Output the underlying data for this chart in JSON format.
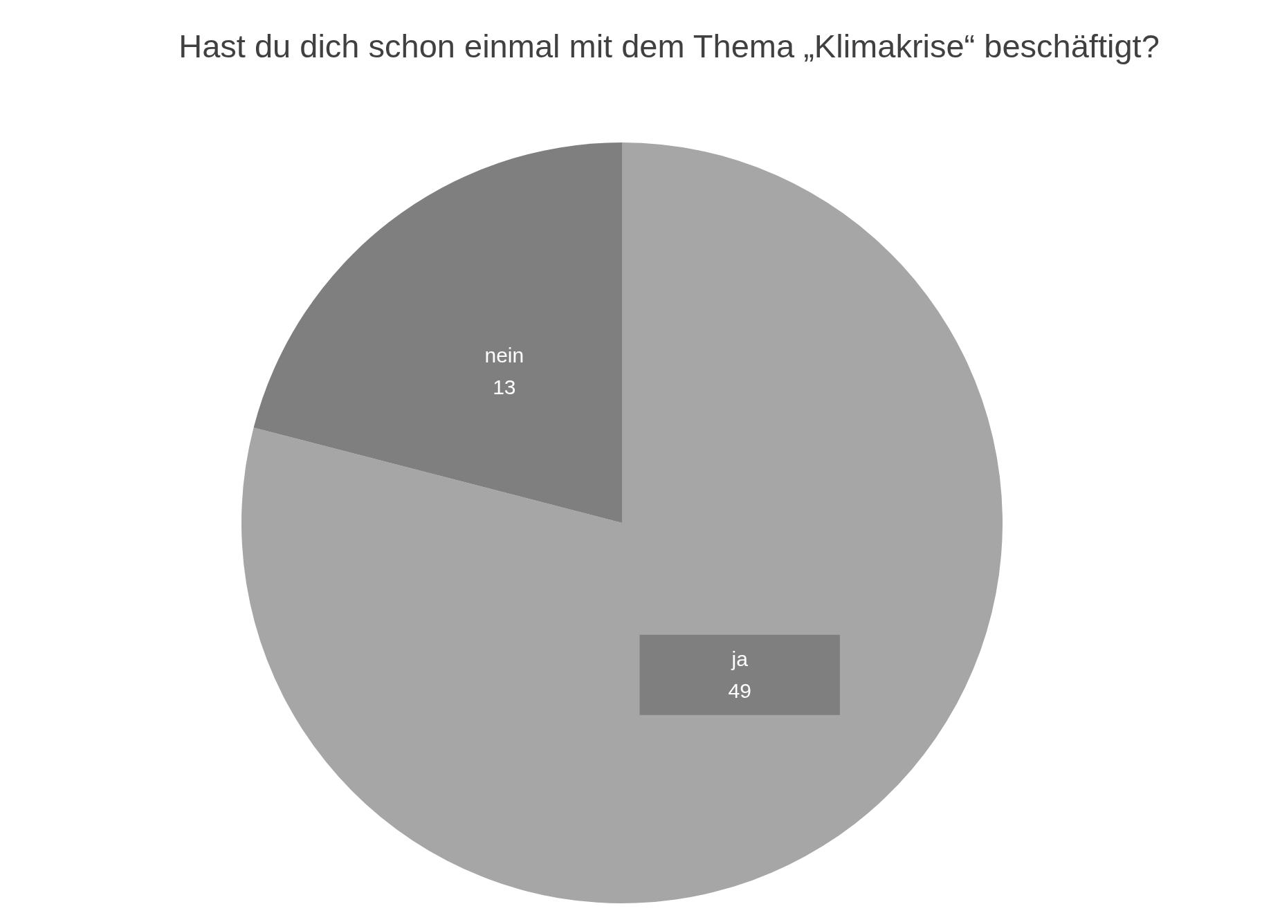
{
  "chart_data": {
    "type": "pie",
    "title": "Hast du dich schon einmal mit dem Thema „Klimakrise“ beschäftigt?",
    "categories": [
      "ja",
      "nein"
    ],
    "values": [
      49,
      13
    ],
    "colors": [
      "#a6a6a6",
      "#7f7f7f"
    ],
    "data_labels": true,
    "legend": false
  }
}
